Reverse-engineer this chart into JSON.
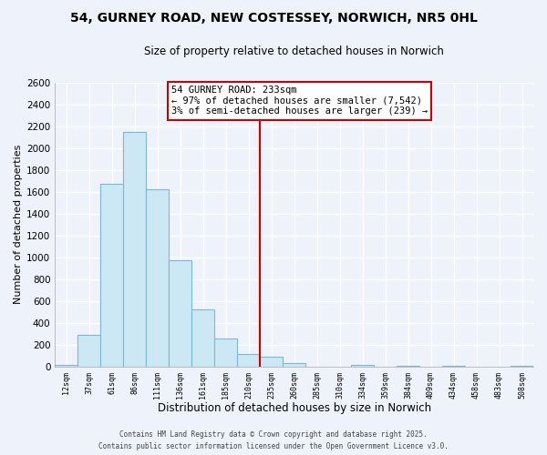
{
  "title": "54, GURNEY ROAD, NEW COSTESSEY, NORWICH, NR5 0HL",
  "subtitle": "Size of property relative to detached houses in Norwich",
  "xlabel": "Distribution of detached houses by size in Norwich",
  "ylabel": "Number of detached properties",
  "bin_labels": [
    "12sqm",
    "37sqm",
    "61sqm",
    "86sqm",
    "111sqm",
    "136sqm",
    "161sqm",
    "185sqm",
    "210sqm",
    "235sqm",
    "260sqm",
    "285sqm",
    "310sqm",
    "334sqm",
    "359sqm",
    "384sqm",
    "409sqm",
    "434sqm",
    "458sqm",
    "483sqm",
    "508sqm"
  ],
  "bar_heights": [
    20,
    290,
    1670,
    2150,
    1620,
    970,
    520,
    255,
    120,
    95,
    30,
    0,
    0,
    20,
    0,
    10,
    0,
    10,
    0,
    0,
    10
  ],
  "bar_color": "#cde8f5",
  "bar_edge_color": "#7ab8d4",
  "vline_x_index": 9,
  "vline_color": "#cc0000",
  "annotation_title": "54 GURNEY ROAD: 233sqm",
  "annotation_line1": "← 97% of detached houses are smaller (7,542)",
  "annotation_line2": "3% of semi-detached houses are larger (239) →",
  "annotation_box_color": "#ffffff",
  "annotation_border_color": "#cc0000",
  "footer_line1": "Contains HM Land Registry data © Crown copyright and database right 2025.",
  "footer_line2": "Contains public sector information licensed under the Open Government Licence v3.0.",
  "ylim": [
    0,
    2600
  ],
  "yticks": [
    0,
    200,
    400,
    600,
    800,
    1000,
    1200,
    1400,
    1600,
    1800,
    2000,
    2200,
    2400,
    2600
  ],
  "bg_color": "#eef2fa",
  "grid_color": "#ffffff",
  "title_fontsize": 10,
  "subtitle_fontsize": 8.5
}
